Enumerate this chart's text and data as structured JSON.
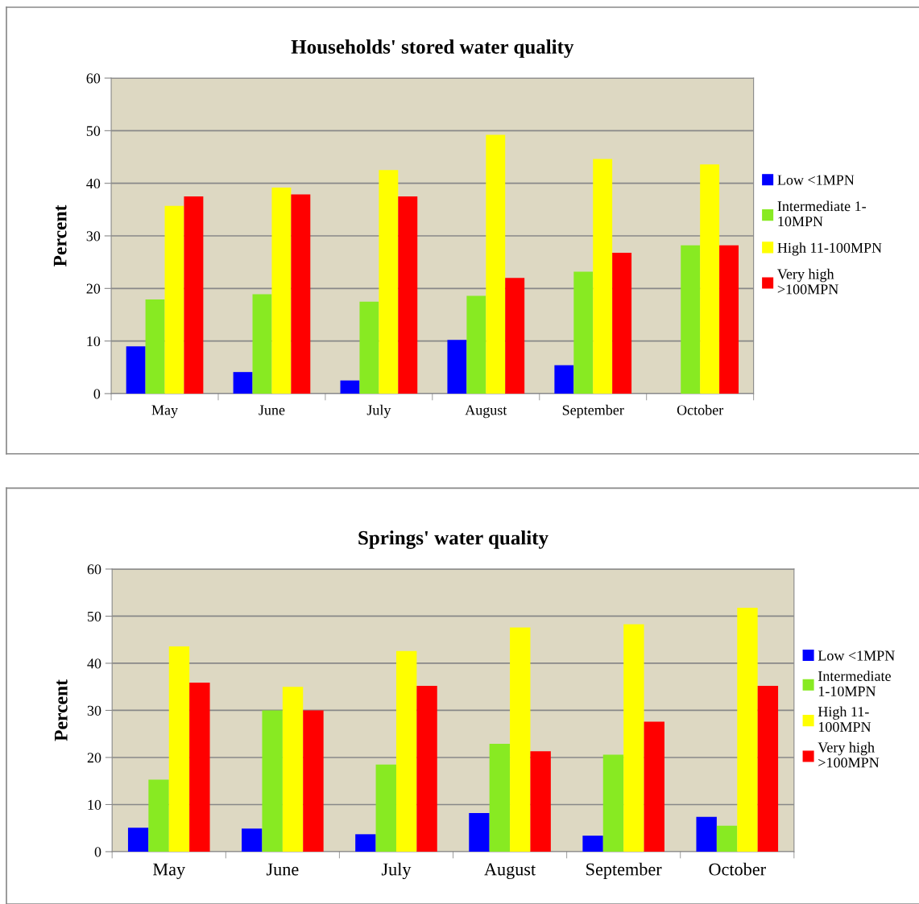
{
  "chart_data": [
    {
      "type": "bar",
      "title": "Households' stored water quality",
      "ylabel": "Percent",
      "categories": [
        "May",
        "June",
        "July",
        "August",
        "September",
        "October"
      ],
      "ylim": [
        0,
        60
      ],
      "yticks": [
        0,
        10,
        20,
        30,
        40,
        50,
        60
      ],
      "grid": "y",
      "legend": "right",
      "series": [
        {
          "name": "Low <1MPN",
          "color": "#0000ff",
          "values": [
            9.0,
            4.1,
            2.5,
            10.2,
            5.4,
            0
          ]
        },
        {
          "name": "Intermediate 1-\n10MPN",
          "color": "#88ea22",
          "values": [
            17.9,
            18.9,
            17.5,
            18.6,
            23.2,
            28.2
          ]
        },
        {
          "name": "High 11-100MPN",
          "color": "#ffff00",
          "values": [
            35.7,
            39.2,
            42.5,
            49.2,
            44.6,
            43.6
          ]
        },
        {
          "name": "Very high\n>100MPN",
          "color": "#ff0000",
          "values": [
            37.5,
            37.9,
            37.5,
            22.0,
            26.8,
            28.2
          ]
        }
      ]
    },
    {
      "type": "bar",
      "title": "Springs' water quality",
      "ylabel": "Percent",
      "categories": [
        "May",
        "June",
        "July",
        "August",
        "September",
        "October"
      ],
      "ylim": [
        0,
        60
      ],
      "yticks": [
        0,
        10,
        20,
        30,
        40,
        50,
        60
      ],
      "grid": "y",
      "legend": "right",
      "series": [
        {
          "name": "Low <1MPN",
          "color": "#0000ff",
          "values": [
            5.1,
            4.9,
            3.7,
            8.2,
            3.4,
            7.4
          ]
        },
        {
          "name": "Intermediate\n1-10MPN",
          "color": "#88ea22",
          "values": [
            15.3,
            30.0,
            18.5,
            22.9,
            20.6,
            5.5
          ]
        },
        {
          "name": "High 11-\n100MPN",
          "color": "#ffff00",
          "values": [
            43.6,
            35.0,
            42.6,
            47.6,
            48.3,
            51.8
          ]
        },
        {
          "name": "Very high\n>100MPN",
          "color": "#ff0000",
          "values": [
            35.9,
            30.0,
            35.2,
            21.3,
            27.6,
            35.2
          ]
        }
      ]
    }
  ]
}
